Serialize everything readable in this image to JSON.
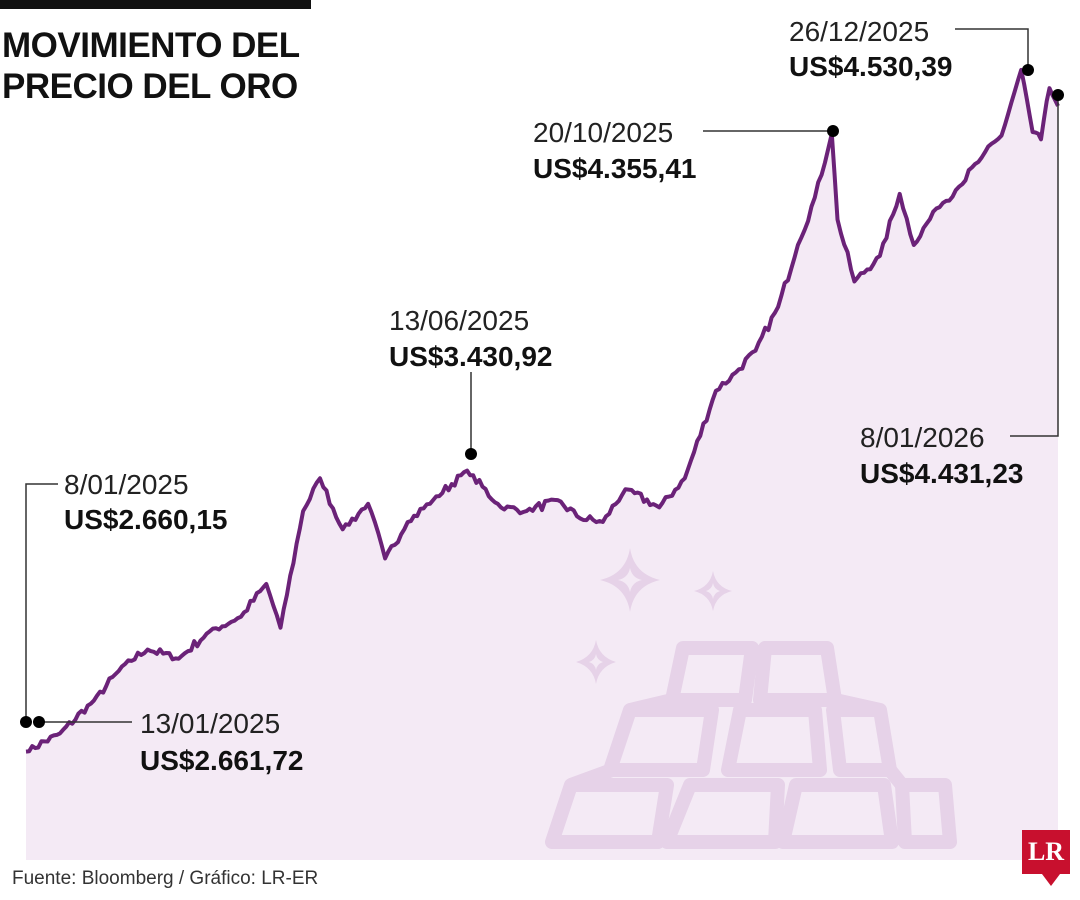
{
  "title": "MOVIMIENTO DEL PRECIO DEL ORO",
  "source": "Fuente: Bloomberg / Gráfico: LR-ER",
  "logo": "LR",
  "colors": {
    "line": "#6b2278",
    "area": "#ecdcee",
    "illustration": "#dbc2de",
    "marker": "#000000",
    "logo": "#c8102e"
  },
  "illustration": {
    "icon": "gold-bars-sparkles-icon"
  },
  "chart_data": {
    "type": "line",
    "title": "MOVIMIENTO DEL PRECIO DEL ORO",
    "xlabel": "",
    "ylabel": "",
    "unit": "US$",
    "grid": false,
    "legend": "none",
    "x_range": [
      "2025-01-08",
      "2026-01-08"
    ],
    "ylim": [
      2600,
      4600
    ],
    "series": [
      {
        "x": [
          "2025-01-08",
          "2025-01-20",
          "2025-02-01",
          "2025-02-12",
          "2025-02-20",
          "2025-03-03",
          "2025-03-14",
          "2025-03-25",
          "2025-04-03",
          "2025-04-08",
          "2025-04-16",
          "2025-04-22",
          "2025-04-30",
          "2025-05-09",
          "2025-05-15",
          "2025-05-23",
          "2025-06-01",
          "2025-06-13",
          "2025-06-25",
          "2025-07-04",
          "2025-07-15",
          "2025-07-23",
          "2025-07-31",
          "2025-08-08",
          "2025-08-20",
          "2025-08-29",
          "2025-09-09",
          "2025-09-16",
          "2025-09-23",
          "2025-10-01",
          "2025-10-08",
          "2025-10-14",
          "2025-10-20",
          "2025-10-22",
          "2025-10-28",
          "2025-11-06",
          "2025-11-13",
          "2025-11-18",
          "2025-11-26",
          "2025-12-04",
          "2025-12-12",
          "2025-12-19",
          "2025-12-26",
          "2025-12-30",
          "2026-01-02",
          "2026-01-05",
          "2026-01-08"
        ],
        "values": [
          2660.15,
          2710,
          2800,
          2900,
          2940,
          2915,
          2990,
          3030,
          3120,
          3000,
          3320,
          3410,
          3270,
          3340,
          3190,
          3290,
          3350,
          3430.92,
          3330,
          3320,
          3350,
          3300,
          3290,
          3380,
          3330,
          3410,
          3650,
          3700,
          3760,
          3880,
          4050,
          4180,
          4355.41,
          4120,
          3950,
          4020,
          4190,
          4050,
          4150,
          4210,
          4290,
          4350,
          4530.39,
          4360,
          4340,
          4480,
          4431.23
        ]
      }
    ],
    "annotations": [
      {
        "date": "8/01/2025",
        "value": "US$2.660,15",
        "x": "2025-01-08",
        "y": 2660.15
      },
      {
        "date": "13/01/2025",
        "value": "US$2.661,72",
        "x": "2025-01-13",
        "y": 2661.72
      },
      {
        "date": "13/06/2025",
        "value": "US$3.430,92",
        "x": "2025-06-13",
        "y": 3430.92
      },
      {
        "date": "20/10/2025",
        "value": "US$4.355,41",
        "x": "2025-10-20",
        "y": 4355.41
      },
      {
        "date": "26/12/2025",
        "value": "US$4.530,39",
        "x": "2025-12-26",
        "y": 4530.39
      },
      {
        "date": "8/01/2026",
        "value": "US$4.431,23",
        "x": "2026-01-08",
        "y": 4431.23
      }
    ]
  }
}
